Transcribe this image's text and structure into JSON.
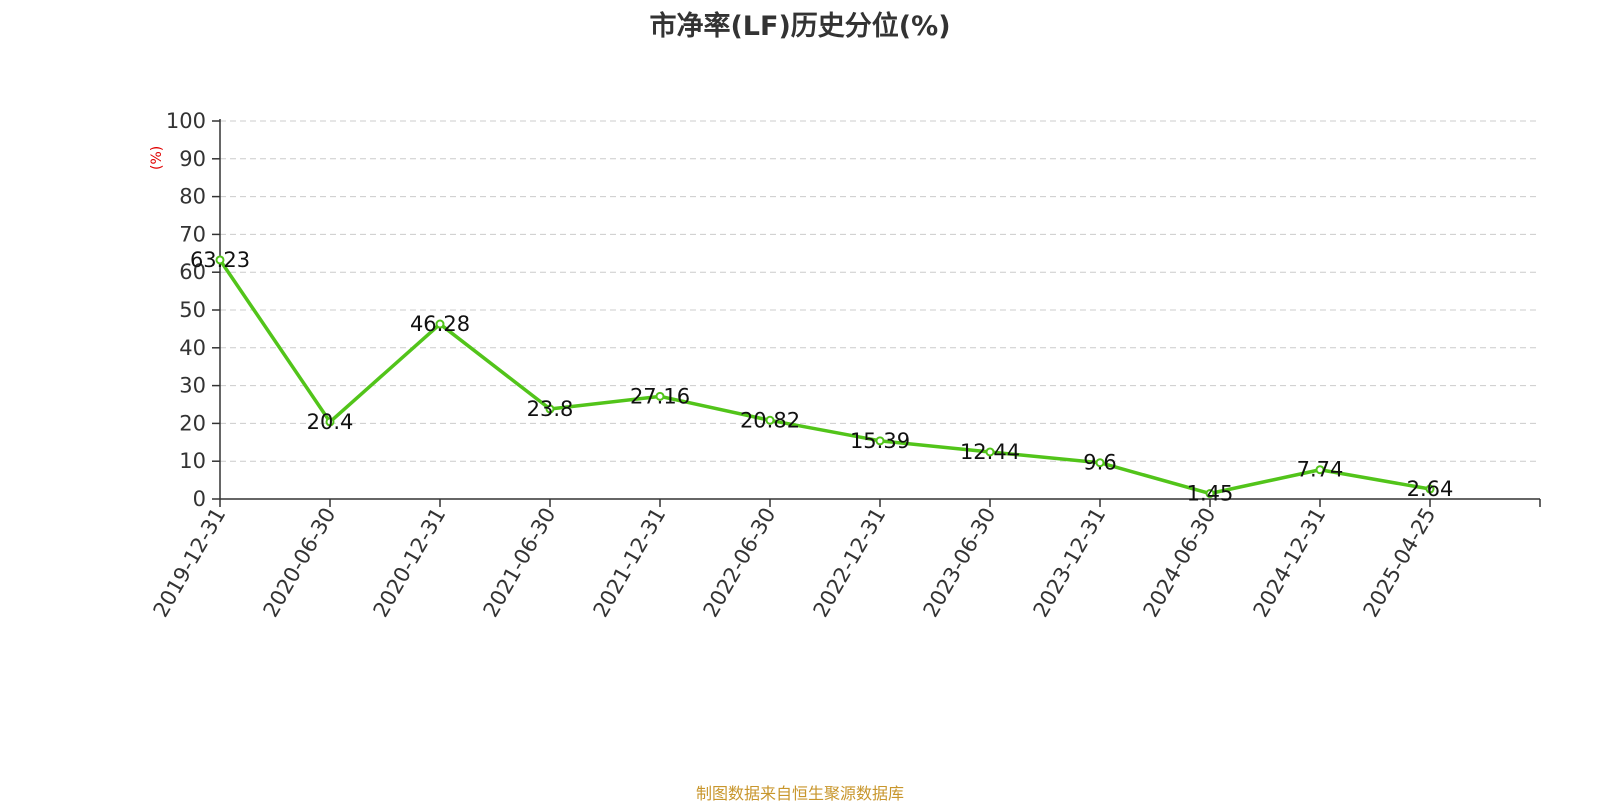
{
  "chart_data": {
    "type": "line",
    "title": "市净率(LF)历史分位(%)",
    "ylabel": "(%)",
    "xlabel": "",
    "ylim": [
      0,
      100
    ],
    "yticks": [
      0,
      10,
      20,
      30,
      40,
      50,
      60,
      70,
      80,
      90,
      100
    ],
    "grid": true,
    "categories": [
      "2019-12-31",
      "2020-06-30",
      "2020-12-31",
      "2021-06-30",
      "2021-12-31",
      "2022-06-30",
      "2022-12-31",
      "2023-06-30",
      "2023-12-31",
      "2024-06-30",
      "2024-12-31",
      "2025-04-25"
    ],
    "series": [
      {
        "values": [
          63.23,
          20.4,
          46.28,
          23.8,
          27.16,
          20.82,
          15.39,
          12.44,
          9.6,
          1.45,
          7.74,
          2.64
        ],
        "labels": [
          "63.23",
          "20.4",
          "46.28",
          "23.8",
          "27.16",
          "20.82",
          "15.39",
          "12.44",
          "9.6",
          "1.45",
          "7.74",
          "2.64"
        ],
        "color": "#52c41a"
      }
    ]
  },
  "source": "制图数据来自恒生聚源数据库",
  "colors": {
    "line": "#52c41a",
    "grid": "#cccccc",
    "axis": "#333333",
    "ylabel": "#e00000",
    "source": "#c8962c"
  }
}
